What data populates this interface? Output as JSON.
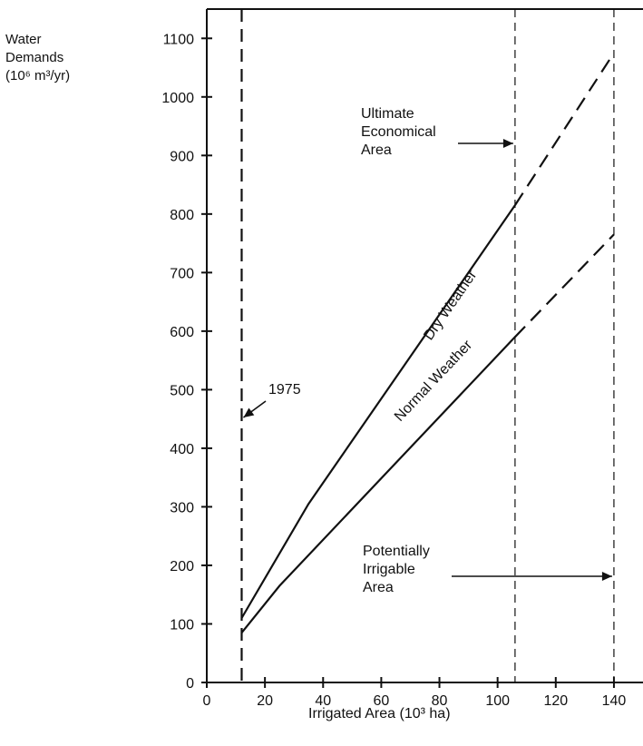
{
  "chart_data": {
    "type": "line",
    "ylabel": [
      "Water",
      "Demands",
      "(10⁶ m³/yr)"
    ],
    "xlabel": "Irrigated Area (10³ ha)",
    "xlim": [
      0,
      150
    ],
    "ylim": [
      0,
      1150
    ],
    "x_ticks": [
      0,
      20,
      40,
      60,
      80,
      100,
      120,
      140
    ],
    "y_ticks": [
      0,
      100,
      200,
      300,
      400,
      500,
      600,
      700,
      800,
      900,
      1000,
      1100
    ],
    "grid": false,
    "series": [
      {
        "name": "Dry Weather",
        "solid": {
          "x": [
            12,
            35,
            106
          ],
          "y": [
            110,
            305,
            815
          ]
        },
        "dashed": {
          "x": [
            106,
            140
          ],
          "y": [
            815,
            1075
          ]
        }
      },
      {
        "name": "Normal Weather",
        "solid": {
          "x": [
            12,
            25,
            106
          ],
          "y": [
            85,
            165,
            590
          ]
        },
        "dashed": {
          "x": [
            106,
            140
          ],
          "y": [
            590,
            765
          ]
        }
      }
    ],
    "reference_lines": [
      {
        "name": "1975",
        "x": 12
      },
      {
        "name": "ultimate-economical-area",
        "x": 106
      },
      {
        "name": "potentially-irrigable-area",
        "x": 140
      }
    ],
    "annotations": {
      "year": "1975",
      "ultimate": [
        "Ultimate",
        "Economical",
        "Area"
      ],
      "potential": [
        "Potentially",
        "Irrigable",
        "Area"
      ]
    }
  }
}
